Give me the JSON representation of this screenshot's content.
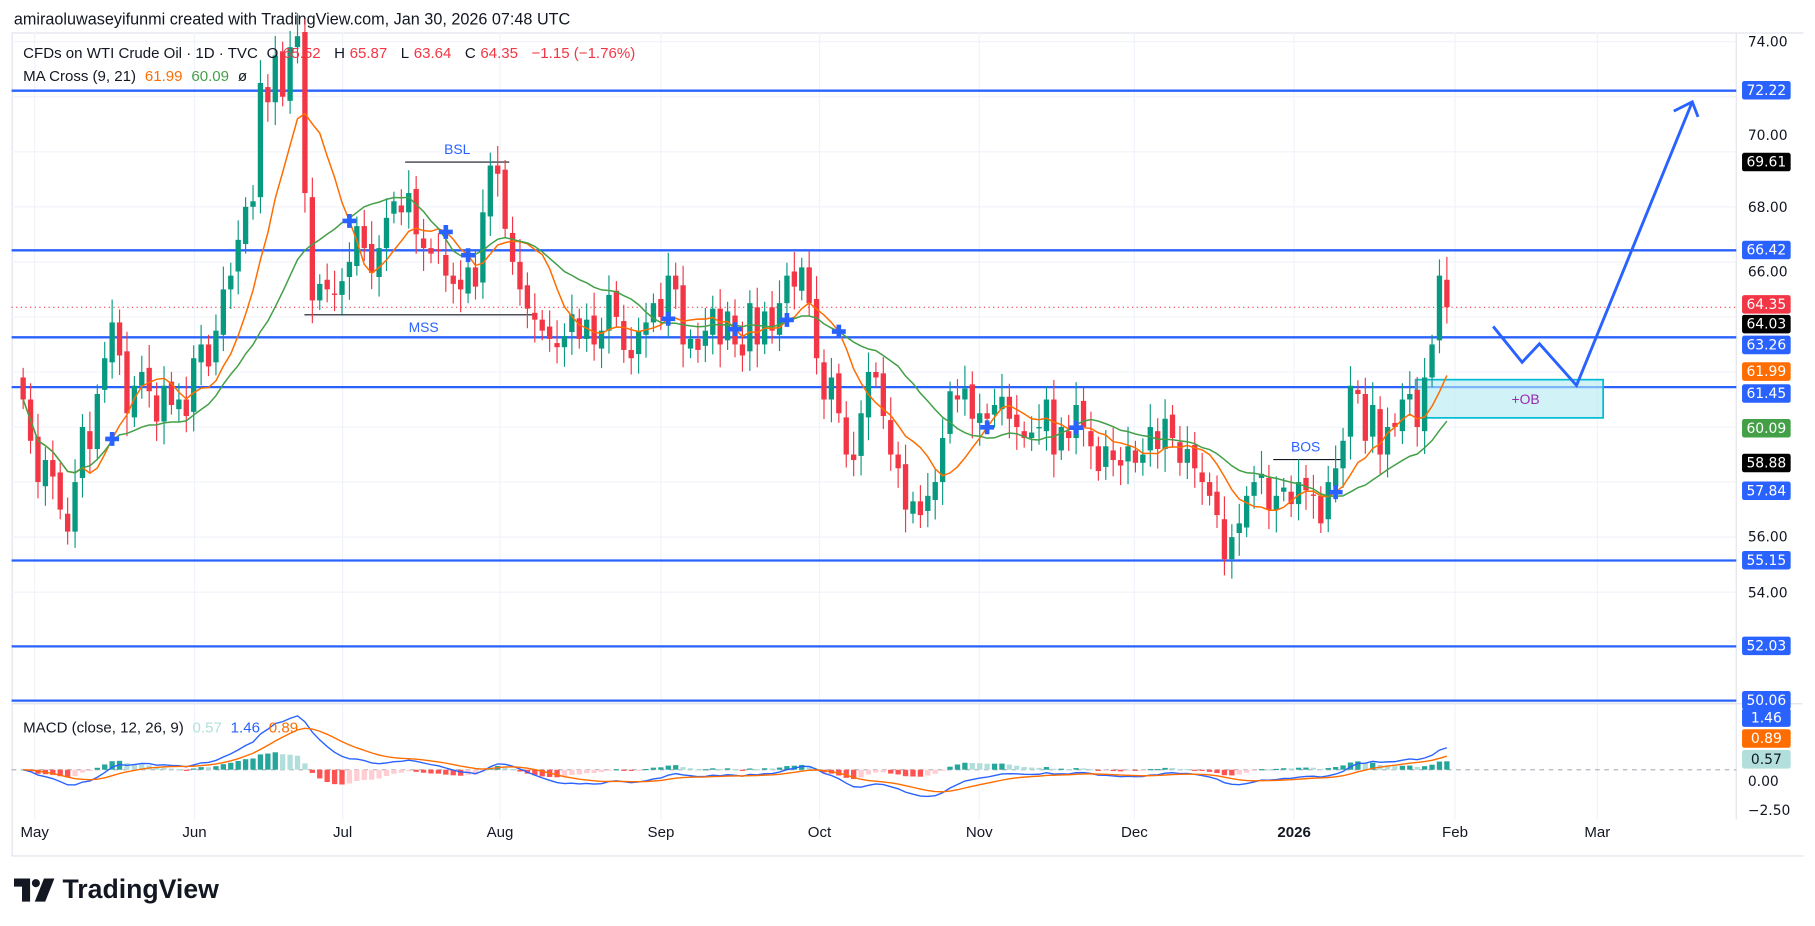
{
  "credit": "amiraoluwaseyifunmi created with TradingView.com, Jan 30, 2026 07:48 UTC",
  "legend": {
    "symbol": "CFDs on WTI Crude Oil · 1D · TVC",
    "o_label": "O",
    "o": "65.52",
    "h_label": "H",
    "h": "65.87",
    "l_label": "L",
    "l": "63.64",
    "c_label": "C",
    "c": "64.35",
    "change": "−1.15 (−1.76%)",
    "ma_label": "MA Cross (9, 21)",
    "ma_fast": "61.99",
    "ma_slow": "60.09",
    "ma_icon": "ø",
    "macd_label": "MACD (close, 12, 26, 9)",
    "macd_hist": "0.57",
    "macd_line": "1.46",
    "macd_signal": "0.89"
  },
  "colors": {
    "up": "#089981",
    "down": "#f23645",
    "level": "#2962ff",
    "ma_fast": "#ff6d00",
    "ma_slow": "#43a047",
    "ob_fill": "#b2ebf2",
    "ob_border": "#00bcd4"
  },
  "axis": {
    "price_ticks": [
      "74.00",
      "70.00",
      "68.00",
      "66.00",
      "56.00",
      "54.00"
    ],
    "macd_ticks": [
      "0.00",
      "−2.50"
    ],
    "time": [
      "May",
      "Jun",
      "Jul",
      "Aug",
      "Sep",
      "Oct",
      "Nov",
      "Dec",
      "2026",
      "Feb",
      "Mar"
    ]
  },
  "levels": [
    "72.22",
    "66.42",
    "63.26",
    "61.45",
    "55.15",
    "52.03",
    "50.06"
  ],
  "badges": [
    {
      "text": "72.22",
      "price": 72.22,
      "color": "#2962ff"
    },
    {
      "text": "69.61",
      "price": 69.61,
      "color": "#000000"
    },
    {
      "text": "66.42",
      "price": 66.42,
      "color": "#2962ff"
    },
    {
      "text": "64.35",
      "price": 64.45,
      "color": "#f23645"
    },
    {
      "text": "64.03",
      "price": 63.75,
      "color": "#000000"
    },
    {
      "text": "63.26",
      "price": 63.0,
      "color": "#2962ff"
    },
    {
      "text": "61.99",
      "price": 62.0,
      "color": "#ff6d00"
    },
    {
      "text": "61.45",
      "price": 61.2,
      "color": "#2962ff"
    },
    {
      "text": "60.09",
      "price": 59.95,
      "color": "#43a047"
    },
    {
      "text": "58.88",
      "price": 58.7,
      "color": "#000000"
    },
    {
      "text": "57.84",
      "price": 57.7,
      "color": "#2962ff"
    },
    {
      "text": "55.15",
      "price": 55.15,
      "color": "#2962ff"
    },
    {
      "text": "52.03",
      "price": 52.03,
      "color": "#2962ff"
    },
    {
      "text": "50.06",
      "price": 50.06,
      "color": "#2962ff"
    }
  ],
  "macd_badges": [
    {
      "text": "1.46",
      "color": "#2962ff"
    },
    {
      "text": "0.89",
      "color": "#ff6d00"
    },
    {
      "text": "0.57",
      "color": "#b2dfdb"
    }
  ],
  "annotations": {
    "bsl": "BSL",
    "mss": "MSS",
    "bos": "BOS",
    "ob": "+OB"
  },
  "logo": "TradingView",
  "chart_data": {
    "type": "candlestick",
    "ylim": [
      49,
      75
    ],
    "scale": "linear",
    "grid": true,
    "closes": [
      61.0,
      59.5,
      58.0,
      58.8,
      58.2,
      57.0,
      56.2,
      58.0,
      60.0,
      59.2,
      61.2,
      62.5,
      63.8,
      62.6,
      60.5,
      61.5,
      62.0,
      61.3,
      60.2,
      61.5,
      60.8,
      61.0,
      60.4,
      62.5,
      63.0,
      62.2,
      63.5,
      65.0,
      65.5,
      66.8,
      68.0,
      68.2,
      72.5,
      71.8,
      73.5,
      72.0,
      73.8,
      74.2,
      68.5,
      64.6,
      65.2,
      65.0,
      64.8,
      65.3,
      66.0,
      67.3,
      66.5,
      65.6,
      66.5,
      67.6,
      68.2,
      67.8,
      68.5,
      67.0,
      66.5,
      66.3,
      66.4,
      65.5,
      65.2,
      65.0,
      65.8,
      65.1,
      67.8,
      69.5,
      69.2,
      67.2,
      66.0,
      65.0,
      64.3,
      63.9,
      63.5,
      63.2,
      62.9,
      63.3,
      64.1,
      63.2,
      63.9,
      63.0,
      63.5,
      64.8,
      64.0,
      62.8,
      62.5,
      63.5,
      63.8,
      64.5,
      64.0,
      65.5,
      65.0,
      63.0,
      63.2,
      62.8,
      63.5,
      64.3,
      63.0,
      64.2,
      63.0,
      62.6,
      64.5,
      63.0,
      64.2,
      63.5,
      64.5,
      65.5,
      65.1,
      65.8,
      64.5,
      62.5,
      61.0,
      61.8,
      60.5,
      59.0,
      58.8,
      60.5,
      62.0,
      61.8,
      60.4,
      59.0,
      58.5,
      57.0,
      57.3,
      56.8,
      57.5,
      58.0,
      59.6,
      61.3,
      61.0,
      61.4,
      60.3,
      60.5,
      60.3,
      60.8,
      61.1,
      60.3,
      60.0,
      59.6,
      59.8,
      60.0,
      61.0,
      59.0,
      60.0,
      59.6,
      60.8,
      60.0,
      59.3,
      58.4,
      59.3,
      58.8,
      58.6,
      59.3,
      58.7,
      59.0,
      60.0,
      59.2,
      60.3,
      59.6,
      58.7,
      59.2,
      58.5,
      58.0,
      57.5,
      56.8,
      55.2,
      56.0,
      56.5,
      57.5,
      58.0,
      58.3,
      57.0,
      57.5,
      57.8,
      57.2,
      58.0,
      57.7,
      57.5,
      56.5,
      58.0,
      58.5,
      59.5,
      61.5,
      61.2,
      59.5,
      60.8,
      59.0,
      60.0,
      60.0,
      61.0,
      61.2,
      60.0,
      61.8,
      63.0,
      65.5,
      64.35
    ]
  }
}
